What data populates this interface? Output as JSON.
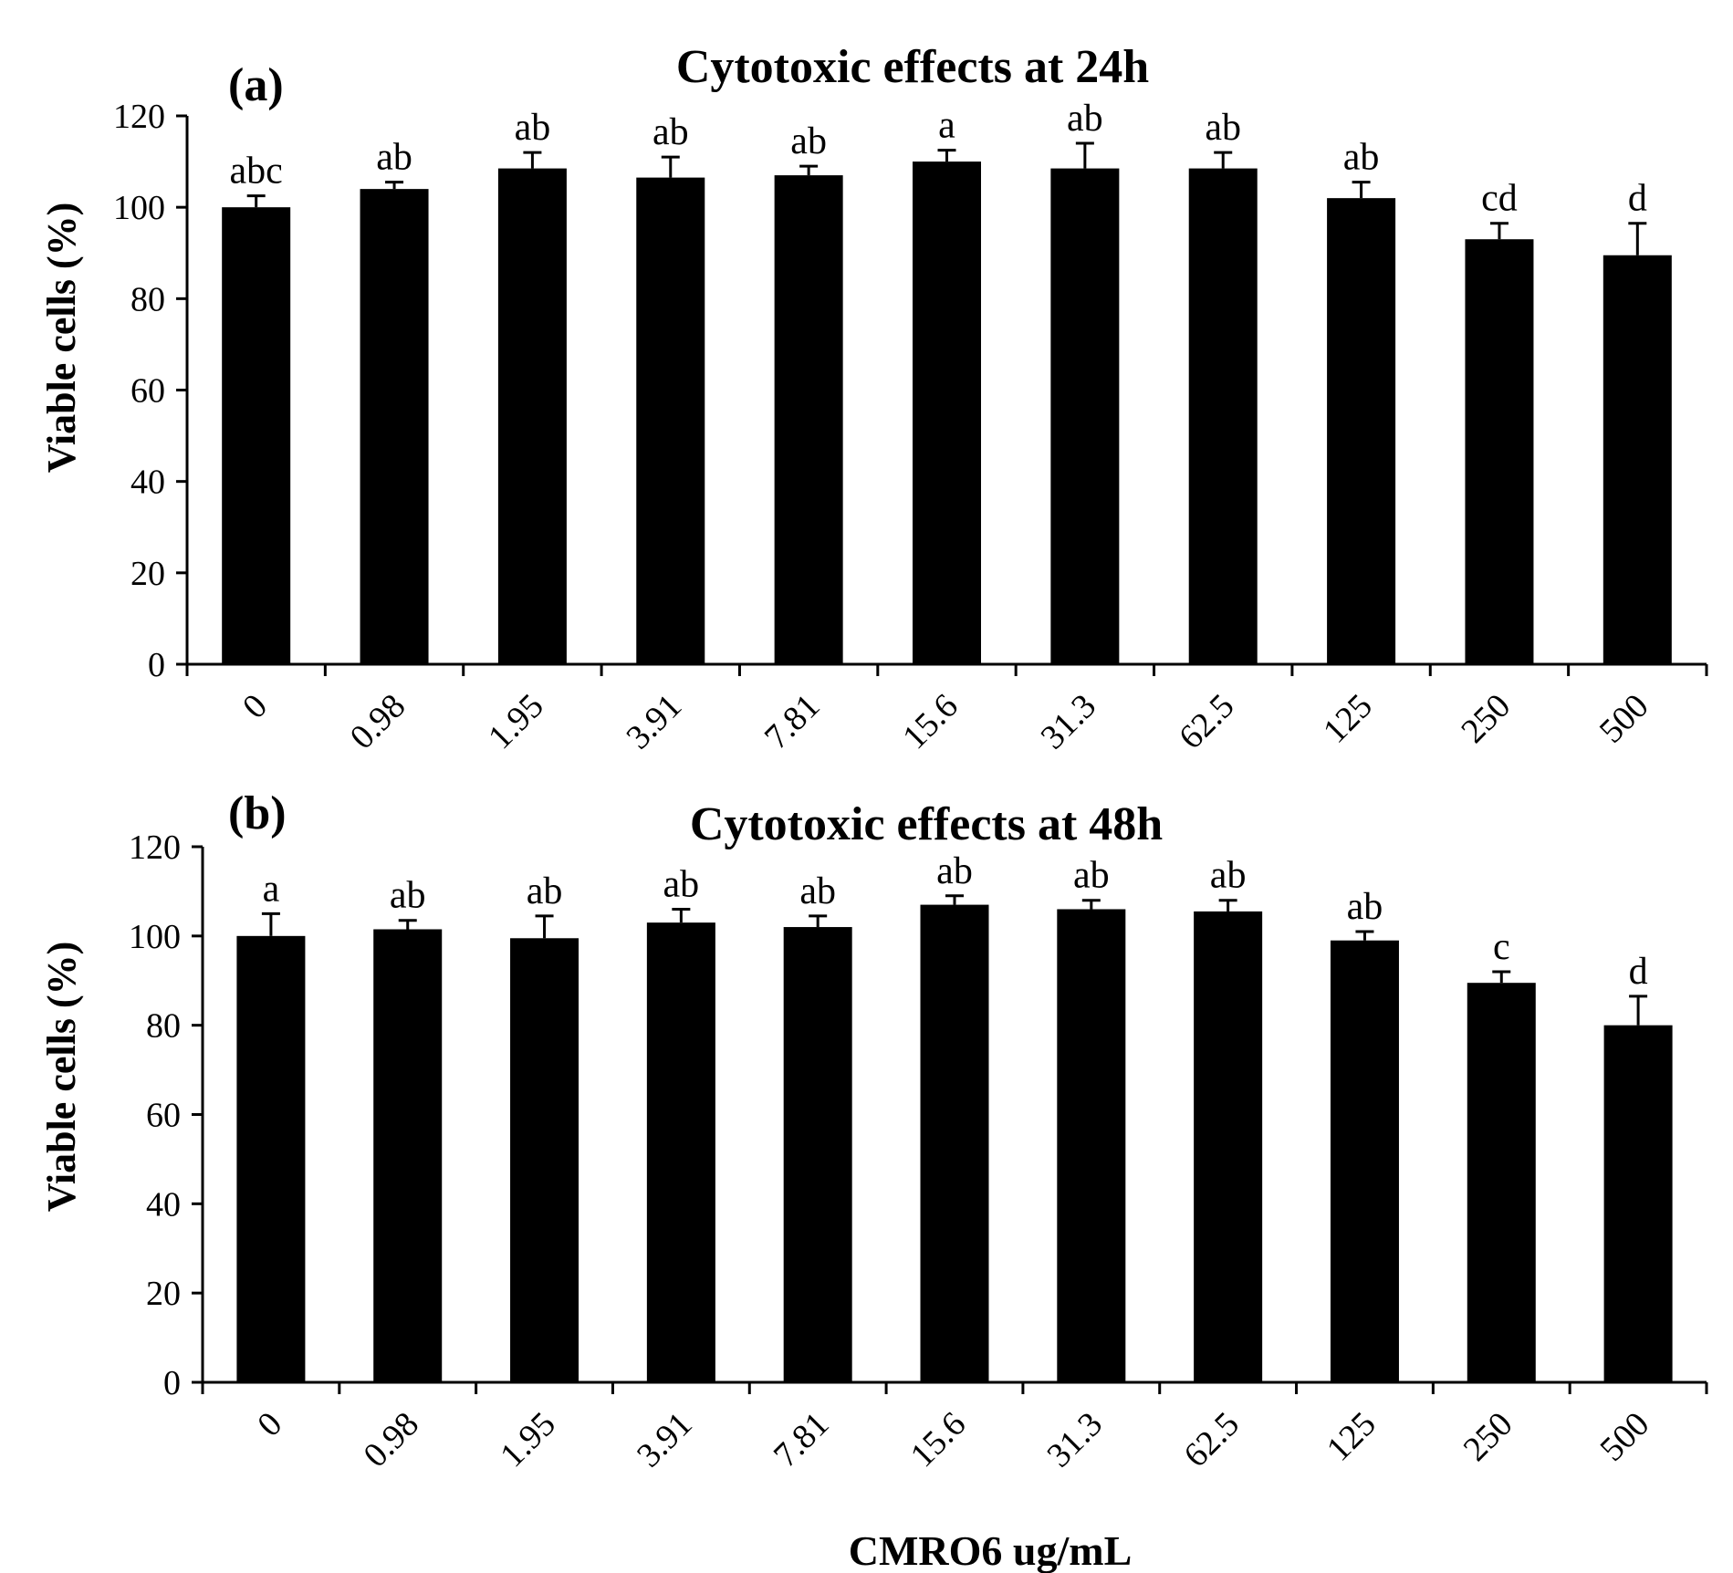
{
  "chart_data": [
    {
      "type": "bar",
      "panel": "(a)",
      "title": "Cytotoxic effects at 24h",
      "ylabel": "Viable cells (%)",
      "xlabel": "",
      "ylim": [
        0,
        120
      ],
      "yticks": [
        0,
        20,
        40,
        60,
        80,
        100,
        120
      ],
      "categories": [
        "0",
        "0.98",
        "1.95",
        "3.91",
        "7.81",
        "15.6",
        "31.3",
        "62.5",
        "125",
        "250",
        "500"
      ],
      "values": [
        100,
        104,
        108.5,
        106.5,
        107,
        110,
        108.5,
        108.5,
        102,
        93,
        89.5
      ],
      "errors": [
        2.5,
        1.5,
        3.5,
        4.5,
        2,
        2.5,
        5.5,
        3.5,
        3.5,
        3.5,
        7
      ],
      "labels": [
        "abc",
        "ab",
        "ab",
        "ab",
        "ab",
        "a",
        "ab",
        "ab",
        "ab",
        "cd",
        "d"
      ]
    },
    {
      "type": "bar",
      "panel": "(b)",
      "title": "Cytotoxic effects at 48h",
      "ylabel": "Viable cells (%)",
      "xlabel": "CMRO6 ug/mL",
      "ylim": [
        0,
        120
      ],
      "yticks": [
        0,
        20,
        40,
        60,
        80,
        100,
        120
      ],
      "categories": [
        "0",
        "0.98",
        "1.95",
        "3.91",
        "7.81",
        "15.6",
        "31.3",
        "62.5",
        "125",
        "250",
        "500"
      ],
      "values": [
        100,
        101.5,
        99.5,
        103,
        102,
        107,
        106,
        105.5,
        99,
        89.5,
        80
      ],
      "errors": [
        5,
        2,
        5,
        3,
        2.5,
        2,
        2,
        2.5,
        2,
        2.5,
        6.5
      ],
      "labels": [
        "a",
        "ab",
        "ab",
        "ab",
        "ab",
        "ab",
        "ab",
        "ab",
        "ab",
        "c",
        "d"
      ]
    }
  ]
}
